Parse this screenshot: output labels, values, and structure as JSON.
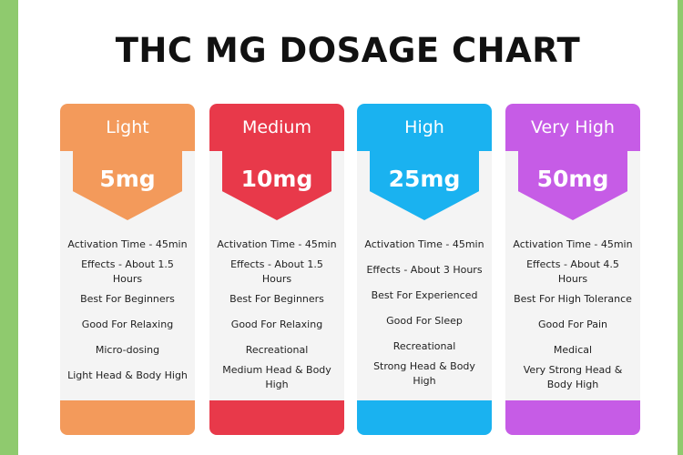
{
  "title": "THC MG DOSAGE CHART",
  "colors": {
    "light": "#f39a5b",
    "medium": "#e8394a",
    "high": "#1ab2f0",
    "very_high": "#c65ce6",
    "stripe": "#8fca6e"
  },
  "cards": [
    {
      "level": "Light",
      "dose": "5mg",
      "color": "#f39a5b",
      "features": [
        "Activation Time - 45min",
        "Effects - About 1.5 Hours",
        "Best For Beginners",
        "Good For Relaxing",
        "Micro-dosing",
        "Light Head & Body High"
      ]
    },
    {
      "level": "Medium",
      "dose": "10mg",
      "color": "#e8394a",
      "features": [
        "Activation Time - 45min",
        "Effects - About 1.5 Hours",
        "Best For Beginners",
        "Good For Relaxing",
        "Recreational",
        "Medium Head & Body High"
      ]
    },
    {
      "level": "High",
      "dose": "25mg",
      "color": "#1ab2f0",
      "features": [
        "Activation Time - 45min",
        "Effects - About 3 Hours",
        "Best For Experienced",
        "Good For Sleep",
        "Recreational",
        "Strong Head & Body High"
      ]
    },
    {
      "level": "Very High",
      "dose": "50mg",
      "color": "#c65ce6",
      "features": [
        "Activation Time - 45min",
        "Effects - About 4.5 Hours",
        "Best For High Tolerance",
        "Good For Pain",
        "Medical",
        "Very Strong Head & Body High"
      ]
    }
  ]
}
